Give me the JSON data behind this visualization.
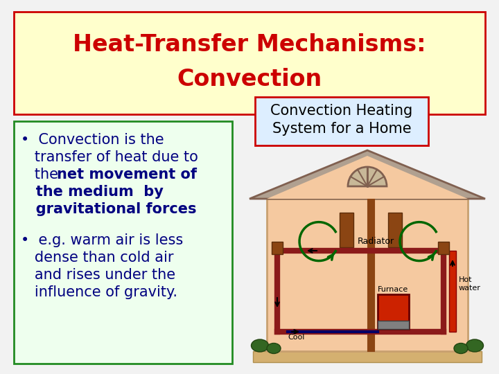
{
  "bg_color": "#f2f2f2",
  "title_box_color": "#ffffcc",
  "title_box_edge": "#cc0000",
  "title_text_line1": "Heat-Transfer Mechanisms:",
  "title_text_line2": "Convection",
  "title_color": "#cc0000",
  "left_box_color": "#eeffee",
  "left_box_edge": "#228B22",
  "left_text_color": "#000080",
  "right_label_box_color": "#ddeeff",
  "right_label_box_edge": "#cc0000",
  "right_label_text_line1": "Convection Heating",
  "right_label_text_line2": "System for a Home",
  "right_label_color": "#000000",
  "house_wall_color": "#f5c9a0",
  "house_wall_edge": "#c8a070",
  "house_roof_color": "#b0a090",
  "house_roof_edge": "#806050",
  "house_floor_color": "#d4b070",
  "pipe_dark_red": "#8b1a1a",
  "pipe_red": "#cc2200",
  "pipe_brown": "#8B4513",
  "furnace_red": "#cc2200",
  "furnace_gray": "#a0a0a0",
  "convection_arrow_color": "#006600",
  "shrub_color": "#336622",
  "shrub_edge": "#224411",
  "window_color": "#d4c8b0",
  "radiator_color": "#8B4513"
}
